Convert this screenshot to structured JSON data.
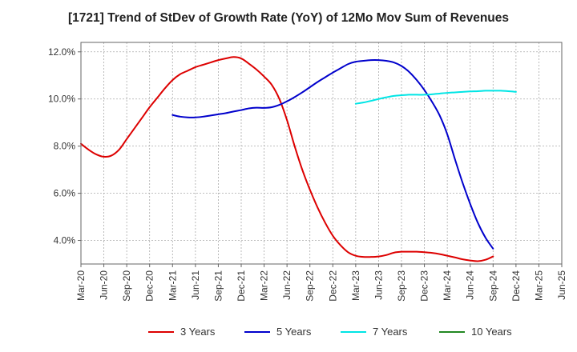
{
  "chart_data": {
    "type": "line",
    "title": "[1721]  Trend of StDev of Growth Rate (YoY) of 12Mo Mov Sum of Revenues",
    "xlabel": "",
    "ylabel": "",
    "ylim": [
      3.0,
      12.4
    ],
    "y_ticks": [
      4.0,
      6.0,
      8.0,
      10.0,
      12.0
    ],
    "y_tick_labels": [
      "4.0%",
      "6.0%",
      "8.0%",
      "10.0%",
      "12.0%"
    ],
    "x_tick_labels": [
      "Mar-20",
      "Jun-20",
      "Sep-20",
      "Dec-20",
      "Mar-21",
      "Jun-21",
      "Sep-21",
      "Dec-21",
      "Mar-22",
      "Jun-22",
      "Sep-22",
      "Dec-22",
      "Mar-23",
      "Jun-23",
      "Sep-23",
      "Dec-23",
      "Mar-24",
      "Jun-24",
      "Sep-24",
      "Dec-24",
      "Mar-25",
      "Jun-25"
    ],
    "grid": true,
    "legend_position": "bottom",
    "series": [
      {
        "name": "3 Years",
        "color": "#dd0000",
        "start_index": 0,
        "values": [
          8.1,
          7.85,
          7.65,
          7.55,
          7.6,
          7.85,
          8.3,
          8.75,
          9.2,
          9.65,
          10.05,
          10.45,
          10.8,
          11.05,
          11.2,
          11.35,
          11.45,
          11.55,
          11.65,
          11.72,
          11.78,
          11.72,
          11.5,
          11.25,
          10.95,
          10.6,
          10.0,
          9.1,
          8.0,
          7.0,
          6.15,
          5.4,
          4.75,
          4.2,
          3.8,
          3.5,
          3.35,
          3.3,
          3.3,
          3.32,
          3.38,
          3.48,
          3.52,
          3.52,
          3.52,
          3.5,
          3.47,
          3.42,
          3.35,
          3.28,
          3.2,
          3.15,
          3.12,
          3.18,
          3.32
        ]
      },
      {
        "name": "5 Years",
        "color": "#0000cc",
        "start_index": 12,
        "values": [
          9.32,
          9.25,
          9.22,
          9.22,
          9.25,
          9.3,
          9.35,
          9.4,
          9.47,
          9.53,
          9.6,
          9.63,
          9.62,
          9.65,
          9.75,
          9.9,
          10.08,
          10.28,
          10.5,
          10.72,
          10.92,
          11.12,
          11.3,
          11.48,
          11.58,
          11.62,
          11.65,
          11.65,
          11.62,
          11.55,
          11.4,
          11.15,
          10.8,
          10.38,
          9.88,
          9.3,
          8.5,
          7.45,
          6.45,
          5.55,
          4.75,
          4.12,
          3.65
        ]
      },
      {
        "name": "7 Years",
        "color": "#00e5e5",
        "start_index": 36,
        "values": [
          9.8,
          9.85,
          9.92,
          10.0,
          10.07,
          10.13,
          10.16,
          10.18,
          10.18,
          10.18,
          10.2,
          10.23,
          10.26,
          10.28,
          10.3,
          10.32,
          10.33,
          10.35,
          10.35,
          10.35,
          10.33,
          10.3
        ]
      },
      {
        "name": "10 Years",
        "color": "#228822",
        "start_index": 0,
        "values": []
      }
    ]
  }
}
